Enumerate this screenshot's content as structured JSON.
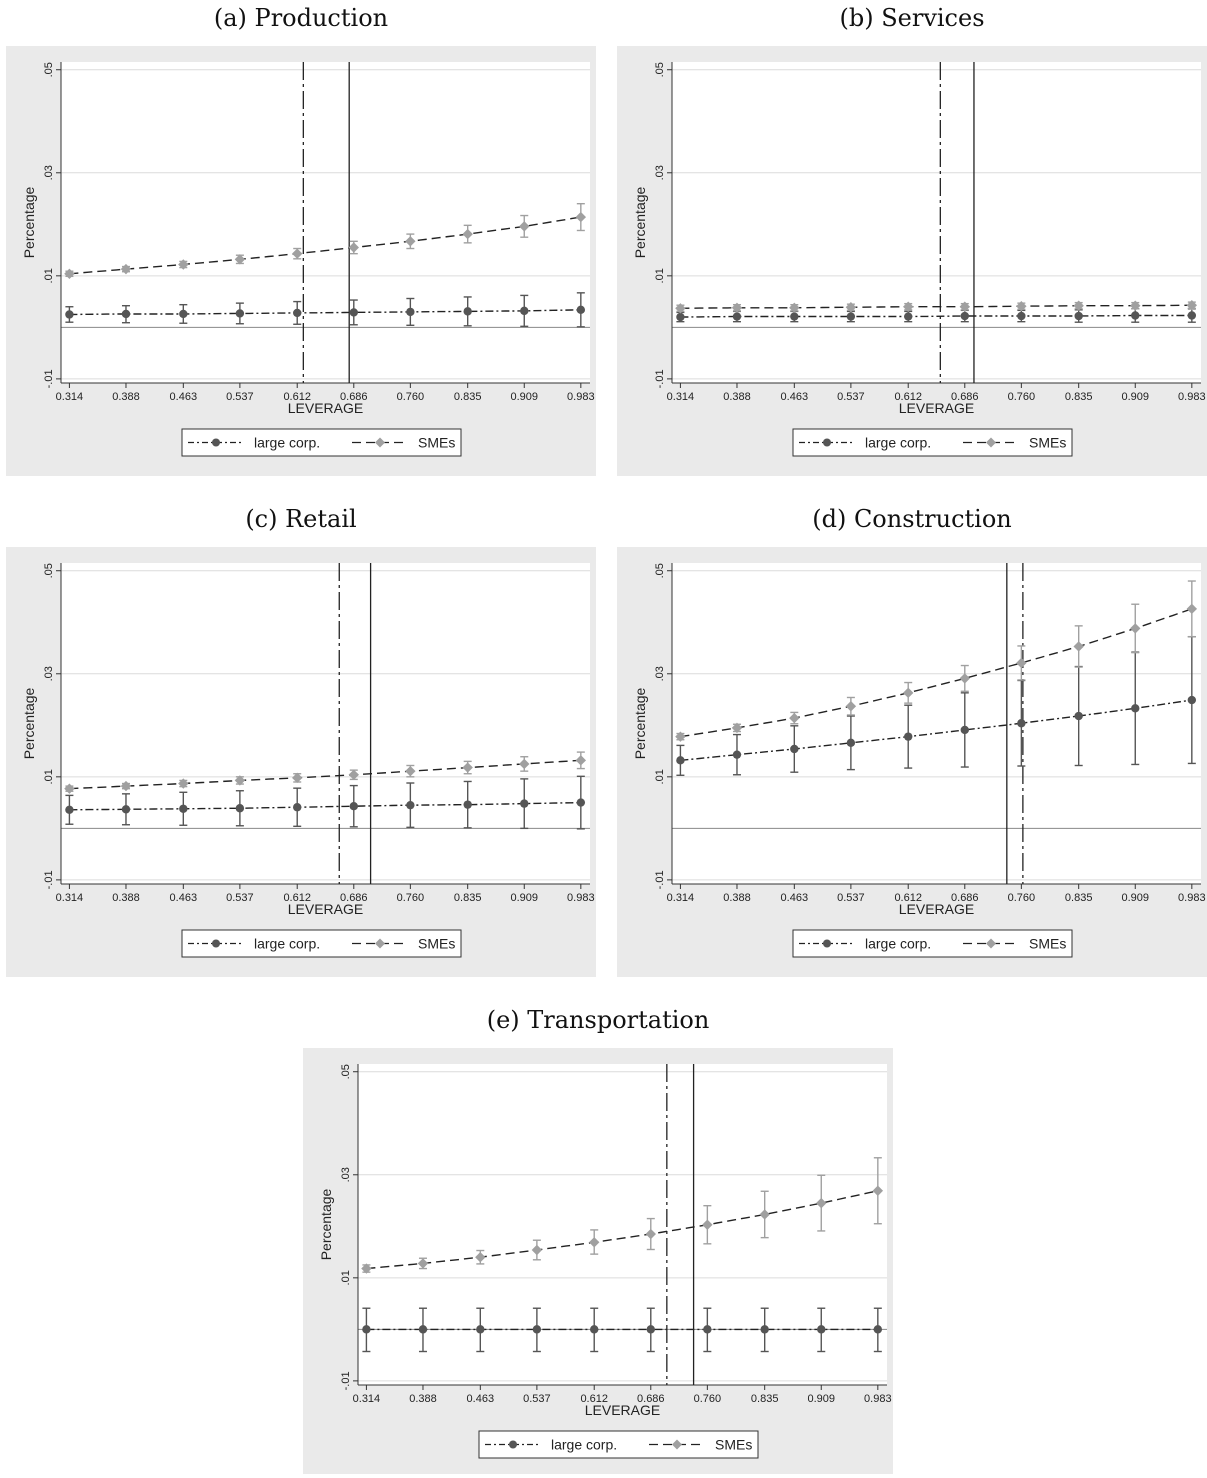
{
  "chart_data": [
    {
      "type": "line",
      "title": "(a) Production",
      "xlabel": "LEVERAGE",
      "ylabel": "Percentage",
      "x": [
        0.314,
        0.388,
        0.463,
        0.537,
        0.612,
        0.686,
        0.76,
        0.835,
        0.909,
        0.983
      ],
      "x_tick_labels": [
        "0.314",
        "0.388",
        "0.463",
        "0.537",
        "0.612",
        "0.686",
        "0.760",
        "0.835",
        "0.909",
        "0.983"
      ],
      "y_ticks": [
        -0.01,
        0.01,
        0.03,
        0.05
      ],
      "y_tick_labels": [
        "-.01",
        ".01",
        ".03",
        ".05"
      ],
      "ylim": [
        -0.0108,
        0.0515
      ],
      "xlim": [
        0.303,
        0.995
      ],
      "reference_line_y": 0,
      "vlines": [
        {
          "x": 0.62,
          "style": "dashdot"
        },
        {
          "x": 0.68,
          "style": "solid"
        }
      ],
      "legend": {
        "position": "bottom",
        "entries": [
          "large corp.",
          "SMEs"
        ]
      },
      "series": [
        {
          "name": "large corp.",
          "marker": "circle",
          "line": "dashdot",
          "color": "#555555",
          "values": [
            0.0025,
            0.0026,
            0.0026,
            0.0027,
            0.0028,
            0.0029,
            0.003,
            0.0031,
            0.0032,
            0.0034
          ],
          "ci_low": [
            0.001,
            0.0009,
            0.0008,
            0.0007,
            0.0006,
            0.0005,
            0.0004,
            0.0003,
            0.0002,
            0.0001
          ],
          "ci_high": [
            0.004,
            0.0042,
            0.0044,
            0.0047,
            0.005,
            0.0053,
            0.0056,
            0.0059,
            0.0062,
            0.0067
          ]
        },
        {
          "name": "SMEs",
          "marker": "diamond",
          "line": "dashed",
          "color": "#a0a0a0",
          "values": [
            0.0104,
            0.0113,
            0.0122,
            0.0132,
            0.0143,
            0.0155,
            0.0167,
            0.0181,
            0.0196,
            0.0214
          ],
          "ci_low": [
            0.0099,
            0.0108,
            0.0116,
            0.0124,
            0.0133,
            0.0143,
            0.0153,
            0.0164,
            0.0175,
            0.0188
          ],
          "ci_high": [
            0.0109,
            0.0118,
            0.0128,
            0.014,
            0.0153,
            0.0167,
            0.0181,
            0.0198,
            0.0217,
            0.024
          ]
        }
      ]
    },
    {
      "type": "line",
      "title": "(b) Services",
      "xlabel": "LEVERAGE",
      "ylabel": "Percentage",
      "x": [
        0.314,
        0.388,
        0.463,
        0.537,
        0.612,
        0.686,
        0.76,
        0.835,
        0.909,
        0.983
      ],
      "x_tick_labels": [
        "0.314",
        "0.388",
        "0.463",
        "0.537",
        "0.612",
        "0.686",
        "0.760",
        "0.835",
        "0.909",
        "0.983"
      ],
      "y_ticks": [
        -0.01,
        0.01,
        0.03,
        0.05
      ],
      "y_tick_labels": [
        "-.01",
        ".01",
        ".03",
        ".05"
      ],
      "ylim": [
        -0.0108,
        0.0515
      ],
      "xlim": [
        0.303,
        0.995
      ],
      "reference_line_y": 0,
      "vlines": [
        {
          "x": 0.654,
          "style": "dashdot"
        },
        {
          "x": 0.698,
          "style": "solid"
        }
      ],
      "legend": {
        "position": "bottom",
        "entries": [
          "large corp.",
          "SMEs"
        ]
      },
      "series": [
        {
          "name": "large corp.",
          "marker": "circle",
          "line": "dashdot",
          "color": "#555555",
          "values": [
            0.002,
            0.0021,
            0.0021,
            0.0021,
            0.0021,
            0.0022,
            0.0022,
            0.0022,
            0.0023,
            0.0023
          ],
          "ci_low": [
            0.0011,
            0.0011,
            0.0011,
            0.0011,
            0.0011,
            0.0011,
            0.0011,
            0.001,
            0.001,
            0.001
          ],
          "ci_high": [
            0.0029,
            0.0031,
            0.0031,
            0.0031,
            0.0031,
            0.0033,
            0.0033,
            0.0034,
            0.0036,
            0.0036
          ]
        },
        {
          "name": "SMEs",
          "marker": "diamond",
          "line": "dashed",
          "color": "#a0a0a0",
          "values": [
            0.0037,
            0.0038,
            0.0038,
            0.0039,
            0.004,
            0.004,
            0.0041,
            0.0042,
            0.0042,
            0.0043
          ],
          "ci_low": [
            0.0031,
            0.0032,
            0.0032,
            0.0033,
            0.0034,
            0.0034,
            0.0035,
            0.0036,
            0.0036,
            0.0037
          ],
          "ci_high": [
            0.0043,
            0.0044,
            0.0044,
            0.0045,
            0.0046,
            0.0046,
            0.0047,
            0.0048,
            0.0048,
            0.0049
          ]
        }
      ]
    },
    {
      "type": "line",
      "title": "(c) Retail",
      "xlabel": "LEVERAGE",
      "ylabel": "Percentage",
      "x": [
        0.314,
        0.388,
        0.463,
        0.537,
        0.612,
        0.686,
        0.76,
        0.835,
        0.909,
        0.983
      ],
      "x_tick_labels": [
        "0.314",
        "0.388",
        "0.463",
        "0.537",
        "0.612",
        "0.686",
        "0.760",
        "0.835",
        "0.909",
        "0.983"
      ],
      "y_ticks": [
        -0.01,
        0.01,
        0.03,
        0.05
      ],
      "y_tick_labels": [
        "-.01",
        ".01",
        ".03",
        ".05"
      ],
      "ylim": [
        -0.0108,
        0.0515
      ],
      "xlim": [
        0.303,
        0.995
      ],
      "reference_line_y": 0,
      "vlines": [
        {
          "x": 0.667,
          "style": "dashdot"
        },
        {
          "x": 0.708,
          "style": "solid"
        }
      ],
      "legend": {
        "position": "bottom",
        "entries": [
          "large corp.",
          "SMEs"
        ]
      },
      "series": [
        {
          "name": "large corp.",
          "marker": "circle",
          "line": "dashdot",
          "color": "#555555",
          "values": [
            0.0036,
            0.0037,
            0.0038,
            0.0039,
            0.0041,
            0.0043,
            0.0045,
            0.0046,
            0.0048,
            0.005
          ],
          "ci_low": [
            0.0008,
            0.0007,
            0.0006,
            0.0005,
            0.0004,
            0.0003,
            0.0002,
            0.0001,
            0.0,
            -0.0001
          ],
          "ci_high": [
            0.0064,
            0.0067,
            0.007,
            0.0073,
            0.0078,
            0.0083,
            0.0088,
            0.0091,
            0.0096,
            0.0101
          ]
        },
        {
          "name": "SMEs",
          "marker": "diamond",
          "line": "dashed",
          "color": "#a0a0a0",
          "values": [
            0.0077,
            0.0082,
            0.0087,
            0.0093,
            0.0098,
            0.0104,
            0.0111,
            0.0118,
            0.0125,
            0.0132
          ],
          "ci_low": [
            0.0072,
            0.0077,
            0.0081,
            0.0086,
            0.009,
            0.0095,
            0.01,
            0.0106,
            0.0111,
            0.0116
          ],
          "ci_high": [
            0.0082,
            0.0087,
            0.0093,
            0.01,
            0.0106,
            0.0113,
            0.0122,
            0.013,
            0.0139,
            0.0148
          ]
        }
      ]
    },
    {
      "type": "line",
      "title": "(d) Construction",
      "xlabel": "LEVERAGE",
      "ylabel": "Percentage",
      "x": [
        0.314,
        0.388,
        0.463,
        0.537,
        0.612,
        0.686,
        0.76,
        0.835,
        0.909,
        0.983
      ],
      "x_tick_labels": [
        "0.314",
        "0.388",
        "0.463",
        "0.537",
        "0.612",
        "0.686",
        "0.760",
        "0.835",
        "0.909",
        "0.983"
      ],
      "y_ticks": [
        -0.01,
        0.01,
        0.03,
        0.05
      ],
      "y_tick_labels": [
        "-.01",
        ".01",
        ".03",
        ".05"
      ],
      "ylim": [
        -0.0108,
        0.0515
      ],
      "xlim": [
        0.303,
        0.995
      ],
      "reference_line_y": 0,
      "vlines": [
        {
          "x": 0.741,
          "style": "solid"
        },
        {
          "x": 0.762,
          "style": "dashdot"
        }
      ],
      "legend": {
        "position": "bottom",
        "entries": [
          "large corp.",
          "SMEs"
        ]
      },
      "series": [
        {
          "name": "large corp.",
          "marker": "circle",
          "line": "dashdot",
          "color": "#555555",
          "values": [
            0.0132,
            0.0143,
            0.0154,
            0.0166,
            0.0178,
            0.0191,
            0.0204,
            0.0218,
            0.0233,
            0.0249
          ],
          "ci_low": [
            0.0103,
            0.0104,
            0.0109,
            0.0114,
            0.0117,
            0.0119,
            0.0121,
            0.0122,
            0.0124,
            0.0126
          ],
          "ci_high": [
            0.0161,
            0.0182,
            0.0199,
            0.0218,
            0.0239,
            0.0263,
            0.0287,
            0.0314,
            0.0342,
            0.0372
          ]
        },
        {
          "name": "SMEs",
          "marker": "diamond",
          "line": "dashed",
          "color": "#a0a0a0",
          "values": [
            0.0178,
            0.0195,
            0.0214,
            0.0237,
            0.0263,
            0.0291,
            0.0321,
            0.0353,
            0.0388,
            0.0426
          ],
          "ci_low": [
            0.0172,
            0.0188,
            0.0203,
            0.022,
            0.0243,
            0.0266,
            0.0288,
            0.0313,
            0.0341,
            0.0372
          ],
          "ci_high": [
            0.0184,
            0.0202,
            0.0225,
            0.0254,
            0.0283,
            0.0316,
            0.0354,
            0.0393,
            0.0435,
            0.048
          ]
        }
      ]
    },
    {
      "type": "line",
      "title": "(e) Transportation",
      "xlabel": "LEVERAGE",
      "ylabel": "Percentage",
      "x": [
        0.314,
        0.388,
        0.463,
        0.537,
        0.612,
        0.686,
        0.76,
        0.835,
        0.909,
        0.983
      ],
      "x_tick_labels": [
        "0.314",
        "0.388",
        "0.463",
        "0.537",
        "0.612",
        "0.686",
        "0.760",
        "0.835",
        "0.909",
        "0.983"
      ],
      "y_ticks": [
        -0.01,
        0.01,
        0.03,
        0.05
      ],
      "y_tick_labels": [
        "-.01",
        ".01",
        ".03",
        ".05"
      ],
      "ylim": [
        -0.0108,
        0.0515
      ],
      "xlim": [
        0.303,
        0.995
      ],
      "reference_line_y": 0,
      "vlines": [
        {
          "x": 0.707,
          "style": "dashdot"
        },
        {
          "x": 0.742,
          "style": "solid"
        }
      ],
      "legend": {
        "position": "bottom",
        "entries": [
          "large corp.",
          "SMEs"
        ]
      },
      "series": [
        {
          "name": "large corp.",
          "marker": "circle",
          "line": "dashdot",
          "color": "#555555",
          "values": [
            0.0,
            0.0,
            0.0,
            0.0,
            0.0,
            0.0,
            0.0,
            0.0,
            0.0,
            0.0
          ],
          "ci_low": [
            -0.0043,
            -0.0043,
            -0.0043,
            -0.0043,
            -0.0043,
            -0.0043,
            -0.0043,
            -0.0043,
            -0.0043,
            -0.0043
          ],
          "ci_high": [
            0.0041,
            0.0041,
            0.0041,
            0.0041,
            0.0041,
            0.0041,
            0.0041,
            0.0041,
            0.0041,
            0.0041
          ]
        },
        {
          "name": "SMEs",
          "marker": "diamond",
          "line": "dashed",
          "color": "#a0a0a0",
          "values": [
            0.0118,
            0.0128,
            0.014,
            0.0154,
            0.0169,
            0.0185,
            0.0203,
            0.0223,
            0.0245,
            0.0269
          ],
          "ci_low": [
            0.0111,
            0.0118,
            0.0127,
            0.0135,
            0.0146,
            0.0155,
            0.0166,
            0.0178,
            0.0191,
            0.0205
          ],
          "ci_high": [
            0.0125,
            0.0138,
            0.0153,
            0.0173,
            0.0193,
            0.0215,
            0.024,
            0.0268,
            0.0299,
            0.0333
          ]
        }
      ]
    }
  ]
}
